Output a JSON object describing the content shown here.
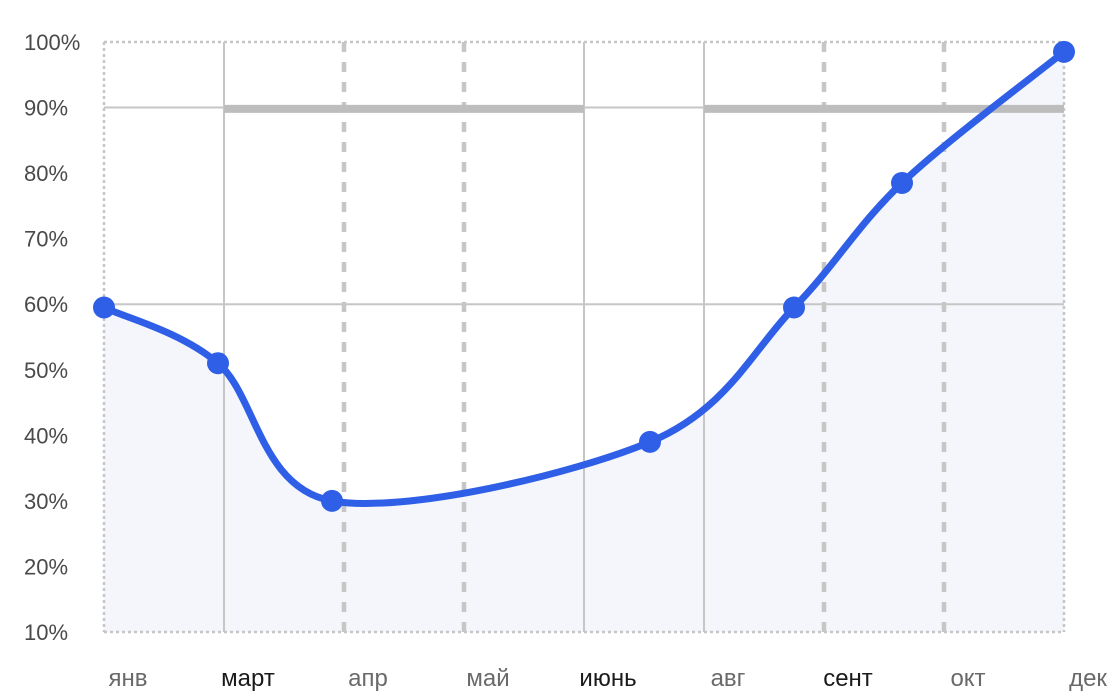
{
  "chart_data": {
    "type": "line",
    "title": "",
    "xlabel": "",
    "ylabel": "",
    "ylim": [
      10,
      100
    ],
    "y_ticks": [
      10,
      20,
      30,
      40,
      50,
      60,
      70,
      80,
      90,
      100
    ],
    "y_tick_labels": [
      "10%",
      "20%",
      "30%",
      "40%",
      "50%",
      "60%",
      "70%",
      "80%",
      "90%",
      "100%"
    ],
    "x_axis": {
      "min": 0,
      "max": 8,
      "tick_labels": [
        {
          "label": "янв",
          "x": 0,
          "emphasis": false
        },
        {
          "label": "март",
          "x": 1,
          "emphasis": true
        },
        {
          "label": "апр",
          "x": 2,
          "emphasis": false
        },
        {
          "label": "май",
          "x": 3,
          "emphasis": false
        },
        {
          "label": "июнь",
          "x": 4,
          "emphasis": true
        },
        {
          "label": "авг",
          "x": 5,
          "emphasis": false
        },
        {
          "label": "сент",
          "x": 6,
          "emphasis": true
        },
        {
          "label": "окт",
          "x": 7,
          "emphasis": false
        },
        {
          "label": "дек",
          "x": 8,
          "emphasis": false
        }
      ]
    },
    "vertical_gridlines": [
      {
        "x": 0,
        "style": "dotted"
      },
      {
        "x": 1,
        "style": "solid"
      },
      {
        "x": 2,
        "style": "dashed"
      },
      {
        "x": 3,
        "style": "dashed"
      },
      {
        "x": 4,
        "style": "solid"
      },
      {
        "x": 5,
        "style": "solid"
      },
      {
        "x": 6,
        "style": "dashed"
      },
      {
        "x": 7,
        "style": "dashed"
      },
      {
        "x": 8,
        "style": "dotted"
      }
    ],
    "horizontal_gridlines": [
      {
        "y": 100,
        "style": "dotted"
      },
      {
        "y": 90,
        "style": "solid"
      },
      {
        "y": 60,
        "style": "solid"
      },
      {
        "y": 10,
        "style": "dotted"
      }
    ],
    "reference_bands": [
      {
        "y": 89.8,
        "x_from": 1,
        "x_to": 4
      },
      {
        "y": 89.8,
        "x_from": 5,
        "x_to": 8
      }
    ],
    "series": [
      {
        "color": "#2f5fe6",
        "area_fill": "#f4f6fc",
        "points": [
          {
            "x": 0,
            "y": 59.5
          },
          {
            "x": 0.95,
            "y": 51
          },
          {
            "x": 1.9,
            "y": 30
          },
          {
            "x": 4.55,
            "y": 39
          },
          {
            "x": 5.75,
            "y": 59.5
          },
          {
            "x": 6.65,
            "y": 78.5
          },
          {
            "x": 8,
            "y": 98.5
          }
        ]
      }
    ],
    "legend": "none",
    "grid": true
  }
}
